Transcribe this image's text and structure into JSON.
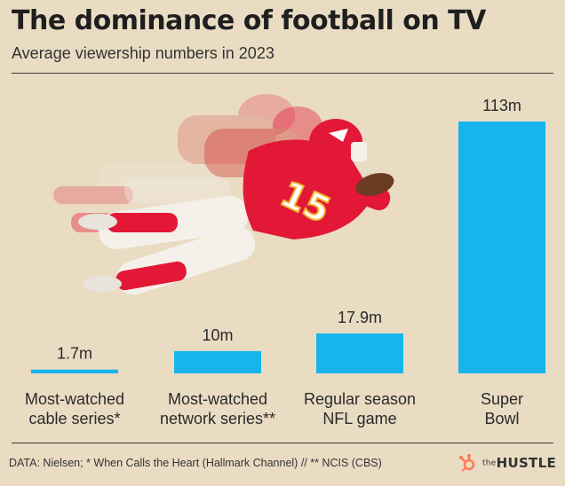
{
  "title": "The dominance of football on TV",
  "subtitle": "Average viewership numbers in 2023",
  "footer": "DATA: Nielsen; * When Calls the Heart (Hallmark Channel) // ** NCIS (CBS)",
  "brand": {
    "prefix": "the",
    "name": "HUSTLE"
  },
  "colors": {
    "bar": "#18b4ec",
    "background": "#e9dcc3",
    "text": "#2a2a2a",
    "jersey": "#e31837"
  },
  "chart_data": {
    "type": "bar",
    "title": "The dominance of football on TV",
    "subtitle": "Average viewership numbers in 2023",
    "unit": "m",
    "categories": [
      [
        "Most-watched",
        "cable series*"
      ],
      [
        "Most-watched",
        "network series**"
      ],
      [
        "Regular season",
        "NFL game"
      ],
      [
        "Super",
        "Bowl"
      ]
    ],
    "values": [
      1.7,
      10,
      17.9,
      113
    ],
    "data_labels": [
      "1.7m",
      "10m",
      "17.9m",
      "113m"
    ],
    "ylim": [
      0,
      113
    ],
    "grid": false,
    "legend": "none"
  }
}
